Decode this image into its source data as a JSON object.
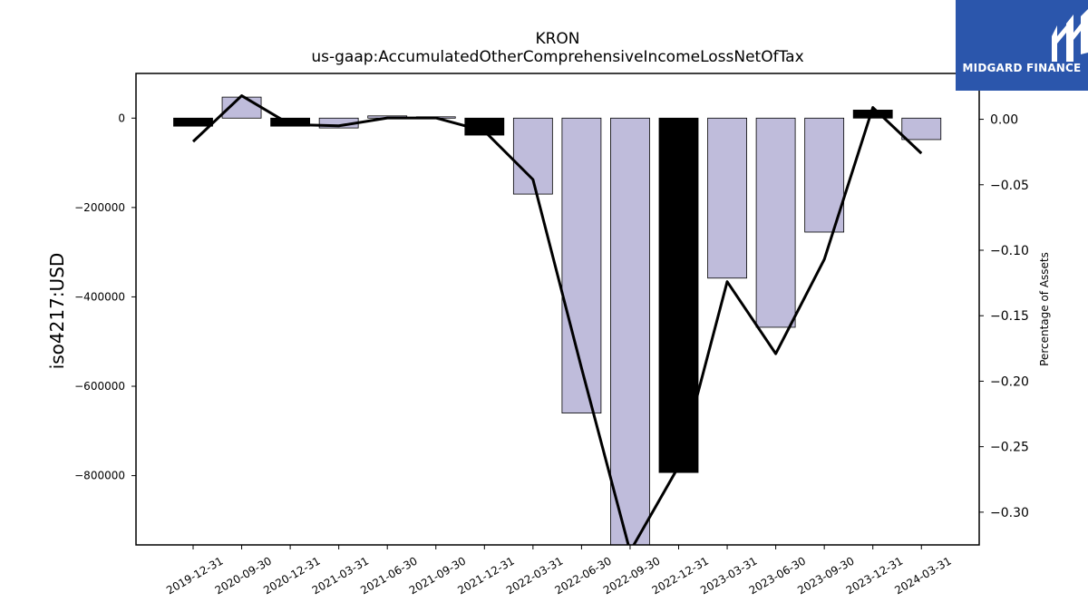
{
  "chart_data": {
    "type": "bar",
    "title": "KRON",
    "subtitle": "us-gaap:AccumulatedOtherComprehensiveIncomeLossNetOfTax",
    "ylabel": "iso4217:USD",
    "y2label": "Percentage of Assets",
    "categories": [
      "2019-12-31",
      "2020-09-30",
      "2020-12-31",
      "2021-03-31",
      "2021-06-30",
      "2021-09-30",
      "2021-12-31",
      "2022-03-31",
      "2022-06-30",
      "2022-09-30",
      "2022-12-31",
      "2023-03-31",
      "2023-06-30",
      "2023-09-30",
      "2023-12-31",
      "2024-03-31"
    ],
    "values": [
      -18000,
      47000,
      -18000,
      -22000,
      5000,
      3000,
      -38000,
      -170000,
      -660000,
      -955000,
      -793000,
      -358000,
      -468000,
      -255000,
      18000,
      -48000
    ],
    "bar_colors": [
      "#000000",
      "#bfbcdb",
      "#000000",
      "#bfbcdb",
      "#bfbcdb",
      "#bfbcdb",
      "#000000",
      "#bfbcdb",
      "#bfbcdb",
      "#bfbcdb",
      "#000000",
      "#bfbcdb",
      "#bfbcdb",
      "#bfbcdb",
      "#000000",
      "#bfbcdb"
    ],
    "percent_of_assets": [
      -0.017,
      0.018,
      -0.004,
      -0.005,
      0.001,
      0.001,
      -0.009,
      -0.046,
      -0.19,
      -0.33,
      -0.265,
      -0.124,
      -0.179,
      -0.107,
      0.009,
      -0.026
    ],
    "ylim": [
      -955000,
      100000
    ],
    "y2lim": [
      -0.325,
      0.035
    ],
    "yticks": [
      0,
      -200000,
      -400000,
      -600000,
      -800000
    ],
    "y2ticks": [
      0.0,
      -0.05,
      -0.1,
      -0.15,
      -0.2,
      -0.25,
      -0.3
    ],
    "y2tick_labels": [
      "0.00",
      "−0.05",
      "−0.10",
      "−0.15",
      "−0.20",
      "−0.25",
      "−0.30"
    ],
    "ytick_labels": [
      "0",
      "−200000",
      "−400000",
      "−600000",
      "−800000"
    ],
    "bar_color": "#bfbcdb",
    "highlight_color": "#000000",
    "line_color": "#000000",
    "grid": false,
    "legend": "none"
  },
  "logo": {
    "text": "MIDGARD FINANCE",
    "color": "#2b56ac"
  }
}
